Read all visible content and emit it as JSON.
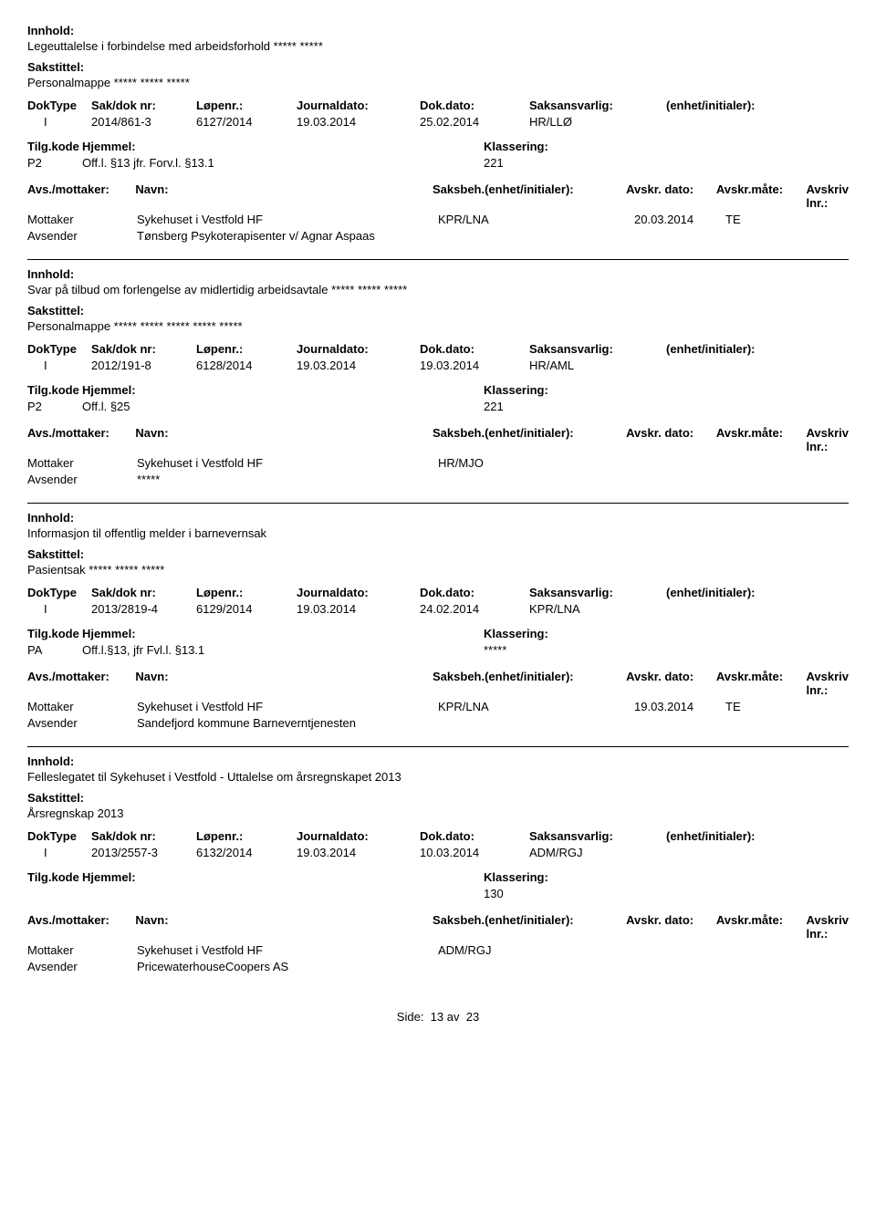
{
  "labels": {
    "innhold": "Innhold:",
    "sakstittel": "Sakstittel:",
    "doktype": "DokType",
    "sakdok": "Sak/dok nr:",
    "lopenr": "Løpenr.:",
    "journaldato": "Journaldato:",
    "dokdato": "Dok.dato:",
    "saksansvarlig": "Saksansvarlig:",
    "enhet": "(enhet/initialer):",
    "tilgkode": "Tilg.kode",
    "hjemmel": "Hjemmel:",
    "klassering": "Klassering:",
    "avsmottaker": "Avs./mottaker:",
    "navn": "Navn:",
    "saksbeh": "Saksbeh.(enhet/initialer):",
    "avskrDato": "Avskr. dato:",
    "avskrMate": "Avskr.måte:",
    "avskrivLnr": "Avskriv lnr.:",
    "mottaker": "Mottaker",
    "avsender": "Avsender",
    "side": "Side:",
    "av": "av"
  },
  "records": [
    {
      "innhold": "Legeuttalelse i forbindelse med arbeidsforhold ***** *****",
      "sakstittel": "Personalmappe ***** ***** *****",
      "doktype": "I",
      "sakdok": "2014/861-3",
      "lopenr": "6127/2014",
      "jdato": "19.03.2014",
      "ddato": "25.02.2014",
      "saksansvarlig": "HR/LLØ",
      "enhet": "",
      "tilgkode": "P2",
      "hjemmel": "Off.l. §13 jfr. Forv.l. §13.1",
      "klassering": "221",
      "parties": [
        {
          "role": "Mottaker",
          "navn": "Sykehuset i Vestfold HF",
          "saksbeh": "KPR/LNA",
          "avskrDato": "20.03.2014",
          "avskrMate": "TE",
          "avskrivLnr": ""
        },
        {
          "role": "Avsender",
          "navn": "Tønsberg Psykoterapisenter v/ Agnar Aspaas",
          "saksbeh": "",
          "avskrDato": "",
          "avskrMate": "",
          "avskrivLnr": ""
        }
      ]
    },
    {
      "innhold": "Svar på tilbud om forlengelse av midlertidig arbeidsavtale ***** ***** *****",
      "sakstittel": "Personalmappe ***** ***** ***** ***** *****",
      "doktype": "I",
      "sakdok": "2012/191-8",
      "lopenr": "6128/2014",
      "jdato": "19.03.2014",
      "ddato": "19.03.2014",
      "saksansvarlig": "HR/AML",
      "enhet": "",
      "tilgkode": "P2",
      "hjemmel": "Off.l. §25",
      "klassering": "221",
      "parties": [
        {
          "role": "Mottaker",
          "navn": "Sykehuset i Vestfold HF",
          "saksbeh": "HR/MJO",
          "avskrDato": "",
          "avskrMate": "",
          "avskrivLnr": ""
        },
        {
          "role": "Avsender",
          "navn": "*****",
          "saksbeh": "",
          "avskrDato": "",
          "avskrMate": "",
          "avskrivLnr": ""
        }
      ]
    },
    {
      "innhold": "Informasjon til offentlig melder i barnevernsak",
      "sakstittel": "Pasientsak ***** ***** *****",
      "doktype": "I",
      "sakdok": "2013/2819-4",
      "lopenr": "6129/2014",
      "jdato": "19.03.2014",
      "ddato": "24.02.2014",
      "saksansvarlig": "KPR/LNA",
      "enhet": "",
      "tilgkode": "PA",
      "hjemmel": "Off.l.§13, jfr Fvl.l. §13.1",
      "klassering": "*****",
      "parties": [
        {
          "role": "Mottaker",
          "navn": "Sykehuset i Vestfold HF",
          "saksbeh": "KPR/LNA",
          "avskrDato": "19.03.2014",
          "avskrMate": "TE",
          "avskrivLnr": ""
        },
        {
          "role": "Avsender",
          "navn": "Sandefjord kommune Barneverntjenesten",
          "saksbeh": "",
          "avskrDato": "",
          "avskrMate": "",
          "avskrivLnr": ""
        }
      ]
    },
    {
      "innhold": "Felleslegatet til Sykehuset i Vestfold - Uttalelse om årsregnskapet 2013",
      "sakstittel": "Årsregnskap 2013",
      "doktype": "I",
      "sakdok": "2013/2557-3",
      "lopenr": "6132/2014",
      "jdato": "19.03.2014",
      "ddato": "10.03.2014",
      "saksansvarlig": "ADM/RGJ",
      "enhet": "",
      "tilgkode": "",
      "hjemmel": "",
      "klassering": "130",
      "parties": [
        {
          "role": "Mottaker",
          "navn": "Sykehuset i Vestfold HF",
          "saksbeh": "ADM/RGJ",
          "avskrDato": "",
          "avskrMate": "",
          "avskrivLnr": ""
        },
        {
          "role": "Avsender",
          "navn": "PricewaterhouseCoopers AS",
          "saksbeh": "",
          "avskrDato": "",
          "avskrMate": "",
          "avskrivLnr": ""
        }
      ]
    }
  ],
  "footer": {
    "page": "13",
    "total": "23"
  }
}
